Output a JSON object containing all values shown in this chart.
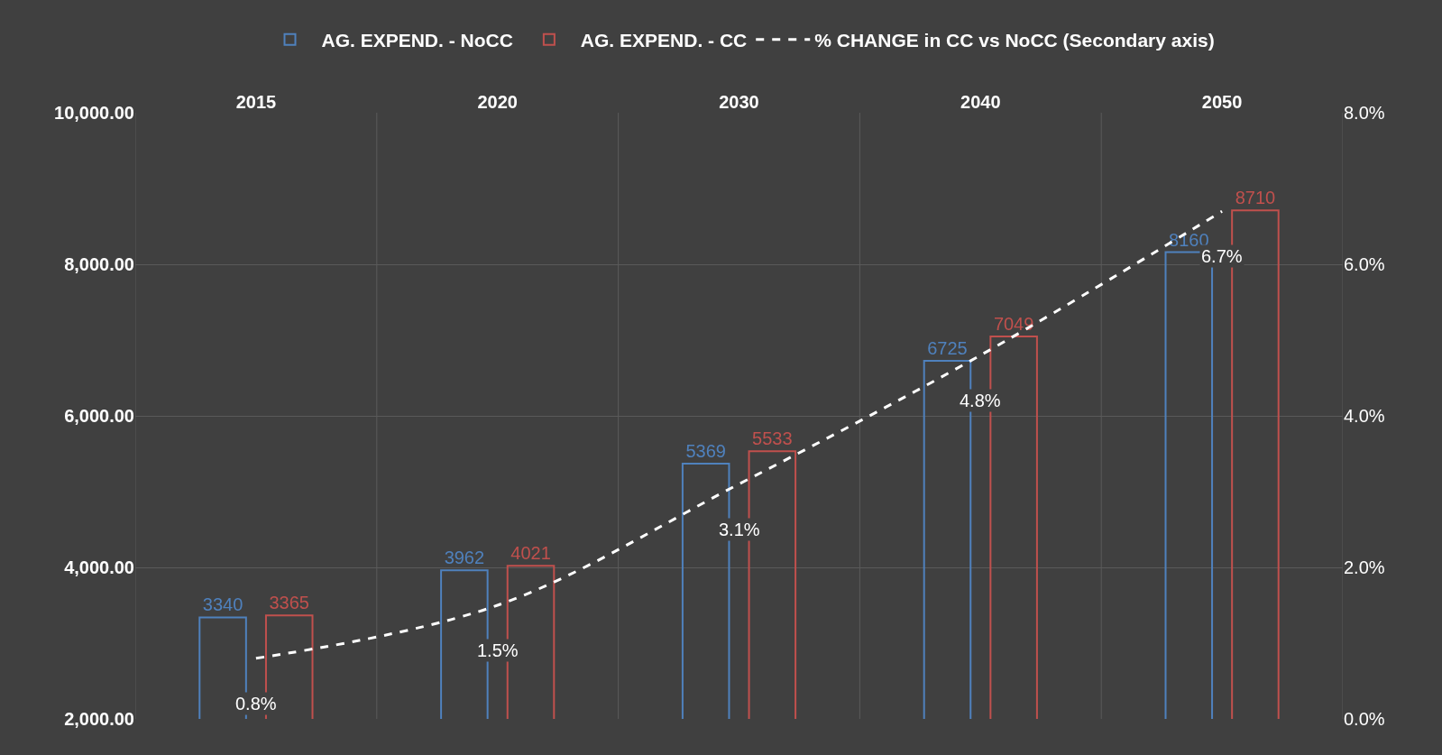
{
  "chart_data": {
    "type": "bar",
    "categories": [
      "2015",
      "2020",
      "2030",
      "2040",
      "2050"
    ],
    "series": [
      {
        "name": "AG. EXPEND. - NoCC",
        "color": "#4f81bd",
        "values": [
          3340,
          3962,
          5369,
          6725,
          8160
        ]
      },
      {
        "name": "AG. EXPEND. - CC",
        "color": "#c0504d",
        "values": [
          3365,
          4021,
          5533,
          7049,
          8710
        ]
      },
      {
        "name": "% CHANGE in CC vs NoCC (Secondary axis)",
        "type": "line",
        "axis": "y2",
        "color": "#ffffff",
        "line_style": "dashed",
        "marker": "none",
        "values": [
          0.8,
          1.5,
          3.1,
          4.8,
          6.7
        ],
        "value_labels": [
          "0.8%",
          "1.5%",
          "3.1%",
          "4.8%",
          "6.7%"
        ]
      }
    ],
    "data_labels": true,
    "ylim": [
      2000,
      10000
    ],
    "yticks": [
      {
        "value": 2000,
        "label": "2,000.00"
      },
      {
        "value": 4000,
        "label": "4,000.00"
      },
      {
        "value": 6000,
        "label": "6,000.00"
      },
      {
        "value": 8000,
        "label": "8,000.00"
      },
      {
        "value": 10000,
        "label": "10,000.00"
      }
    ],
    "y2lim": [
      0,
      8
    ],
    "y2ticks": [
      {
        "value": 0,
        "label": "0.0%"
      },
      {
        "value": 2,
        "label": "2.0%"
      },
      {
        "value": 4,
        "label": "4.0%"
      },
      {
        "value": 6,
        "label": "6.0%"
      },
      {
        "value": 8,
        "label": "8.0%"
      }
    ],
    "grid": true,
    "legend": "top"
  }
}
